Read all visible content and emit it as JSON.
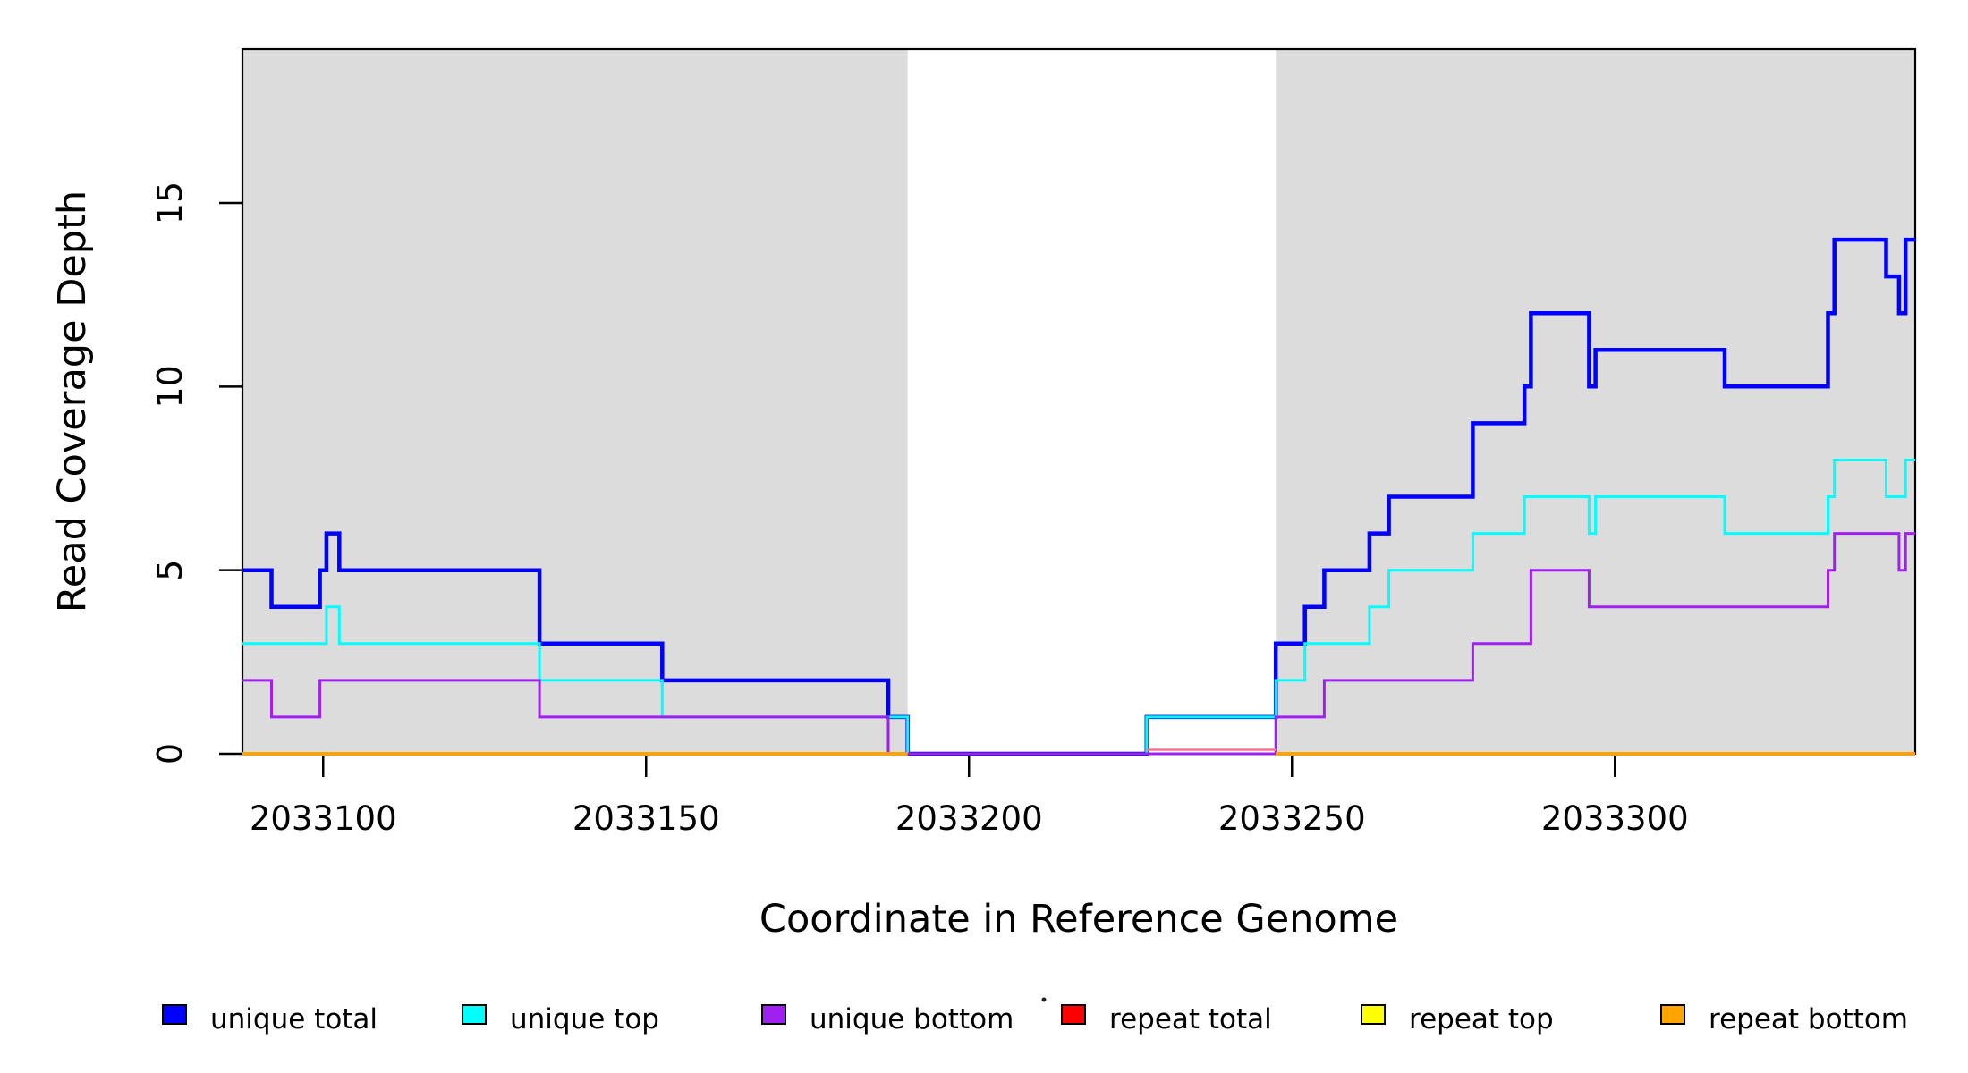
{
  "chart_data": {
    "type": "line",
    "subtype": "step",
    "title": "",
    "xlabel": "Coordinate in Reference Genome",
    "ylabel": "Read Coverage Depth",
    "xlim": [
      2033087.5,
      2033346.5
    ],
    "ylim": [
      0,
      19.2
    ],
    "x_ticks": [
      2033100,
      2033150,
      2033200,
      2033250,
      2033300
    ],
    "x_tick_labels": [
      "2033100",
      "2033150",
      "2033200",
      "2033250",
      "2033300"
    ],
    "y_ticks": [
      0,
      5,
      10,
      15
    ],
    "y_tick_labels": [
      "0",
      "5",
      "10",
      "15"
    ],
    "grid": false,
    "background_shading": {
      "color": "#DCDCDC",
      "regions": [
        [
          2033087.5,
          2033190.5
        ],
        [
          2033247.5,
          2033346.5
        ]
      ]
    },
    "series": [
      {
        "name": "unique total",
        "color": "#0000FF",
        "line_width": 4.5,
        "z": 2,
        "segments": [
          {
            "points": [
              [
                2033087.5,
                5
              ],
              [
                2033092,
                4
              ],
              [
                2033099.5,
                5
              ],
              [
                2033100.5,
                6
              ],
              [
                2033102.5,
                5
              ],
              [
                2033133.5,
                3
              ],
              [
                2033152.5,
                2
              ],
              [
                2033187.5,
                1
              ],
              [
                2033190.5,
                0
              ],
              [
                2033227.5,
                1
              ],
              [
                2033247.5,
                3
              ],
              [
                2033252,
                4
              ],
              [
                2033255,
                5
              ],
              [
                2033262,
                6
              ],
              [
                2033265,
                7
              ],
              [
                2033278,
                9
              ],
              [
                2033286,
                10
              ],
              [
                2033287,
                12
              ],
              [
                2033296,
                10
              ],
              [
                2033297,
                11
              ],
              [
                2033317,
                10
              ],
              [
                2033333,
                12
              ],
              [
                2033334,
                14
              ],
              [
                2033342,
                13
              ],
              [
                2033344,
                12
              ],
              [
                2033345,
                14
              ]
            ],
            "end": 2033346.5
          }
        ]
      },
      {
        "name": "unique top",
        "color": "#00FFFF",
        "line_width": 3,
        "z": 3,
        "segments": [
          {
            "points": [
              [
                2033087.5,
                3
              ],
              [
                2033100.5,
                4
              ],
              [
                2033102.5,
                3
              ],
              [
                2033133.5,
                2
              ],
              [
                2033152.5,
                1
              ],
              [
                2033190.5,
                0
              ],
              [
                2033227.5,
                1
              ],
              [
                2033247.5,
                2
              ],
              [
                2033252,
                3
              ],
              [
                2033262,
                4
              ],
              [
                2033265,
                5
              ],
              [
                2033278,
                6
              ],
              [
                2033286,
                7
              ],
              [
                2033296,
                6
              ],
              [
                2033297,
                7
              ],
              [
                2033317,
                6
              ],
              [
                2033333,
                7
              ],
              [
                2033334,
                8
              ],
              [
                2033342,
                7
              ],
              [
                2033345,
                8
              ]
            ],
            "end": 2033346.5
          }
        ]
      },
      {
        "name": "unique bottom",
        "color": "#A020F0",
        "line_width": 3,
        "z": 4,
        "segments": [
          {
            "points": [
              [
                2033087.5,
                2
              ],
              [
                2033092,
                1
              ],
              [
                2033099.5,
                2
              ],
              [
                2033133.5,
                1
              ],
              [
                2033187.5,
                0
              ],
              [
                2033247.5,
                1
              ],
              [
                2033255,
                2
              ],
              [
                2033278,
                3
              ],
              [
                2033287,
                5
              ],
              [
                2033296,
                4
              ],
              [
                2033333,
                5
              ],
              [
                2033334,
                6
              ],
              [
                2033344,
                5
              ],
              [
                2033345,
                6
              ]
            ],
            "end": 2033346.5
          }
        ]
      },
      {
        "name": "repeat total",
        "color": "#FF7490",
        "line_width": 2.5,
        "z": 5,
        "segments": [
          {
            "points": [
              [
                2033227.5,
                0
              ]
            ],
            "end": 2033247.5,
            "dy": -4.5
          }
        ]
      },
      {
        "name": "repeat top",
        "color": "#FFFF00",
        "line_width": 2,
        "z": 1,
        "segments": [
          {
            "points": [
              [
                2033087.5,
                0
              ]
            ],
            "end": 2033190.5
          },
          {
            "points": [
              [
                2033247.5,
                0
              ]
            ],
            "end": 2033346.5
          }
        ]
      },
      {
        "name": "repeat bottom",
        "color": "#FFA300",
        "line_width": 4,
        "z": 6,
        "segments": [
          {
            "points": [
              [
                2033087.5,
                0
              ]
            ],
            "end": 2033190.5
          },
          {
            "points": [
              [
                2033247.5,
                0
              ]
            ],
            "end": 2033346.5
          }
        ]
      }
    ]
  },
  "legend": {
    "items": [
      {
        "label": "unique total",
        "color": "#0000FF"
      },
      {
        "label": "unique top",
        "color": "#00FFFF"
      },
      {
        "label": "unique bottom",
        "color": "#A020F0"
      },
      {
        "label": "repeat total",
        "color": "#FF0000"
      },
      {
        "label": "repeat top",
        "color": "#FFFF00"
      },
      {
        "label": "repeat bottom",
        "color": "#FFA300"
      }
    ]
  }
}
